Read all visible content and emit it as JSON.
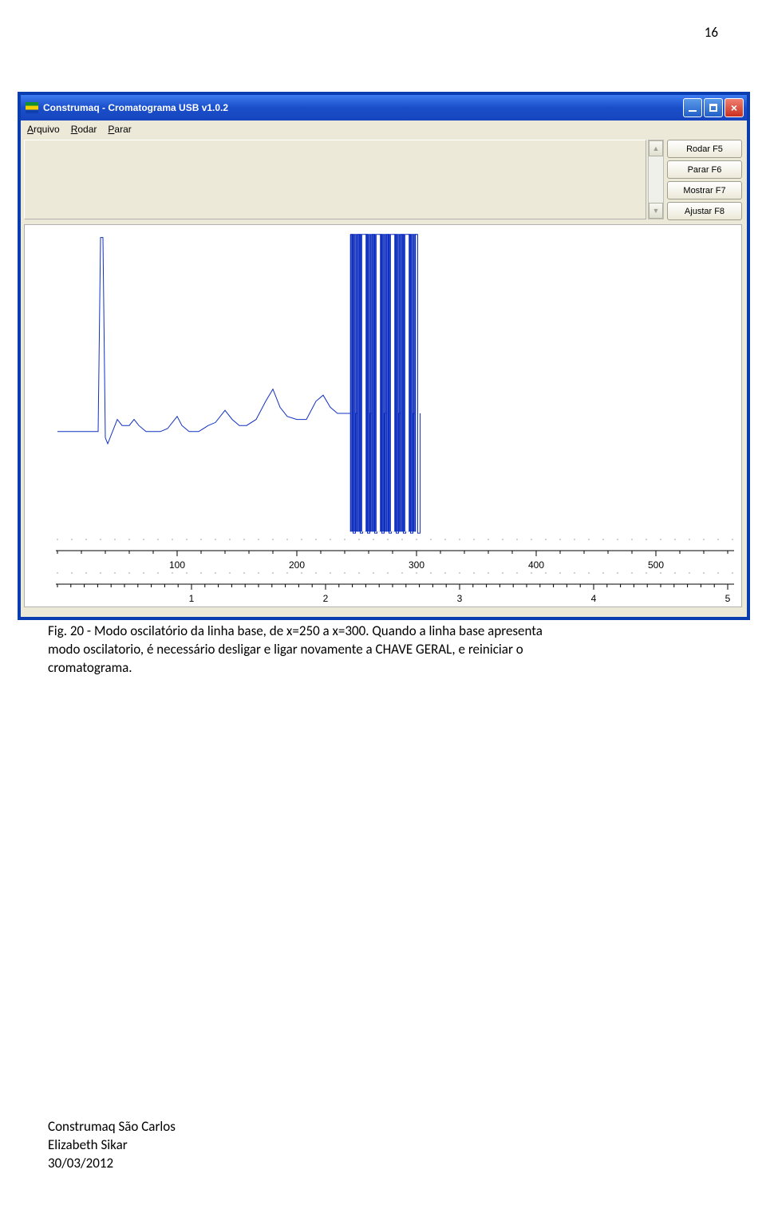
{
  "page_number": "16",
  "window": {
    "title": "Construmaq - Cromatograma USB v1.0.2",
    "titlebar_gradient": [
      "#3c7bf0",
      "#1645be"
    ],
    "frame_color": "#0a3db0",
    "menubar_bg": "#ece9d8",
    "workarea_bg": "#ece9d8"
  },
  "menu": {
    "items": [
      "Arquivo",
      "Rodar",
      "Parar"
    ]
  },
  "side_buttons": {
    "items": [
      "Rodar F5",
      "Parar F6",
      "Mostrar F7",
      "Ajustar F8"
    ]
  },
  "chart": {
    "type": "line",
    "background_color": "#ffffff",
    "line_color": "#1030c0",
    "line_width": 1,
    "axis_color": "#000000",
    "axis_fontsize": 12,
    "dotted_grid_color": "#606060",
    "x_top": {
      "ticks": [
        100,
        200,
        300,
        400,
        500
      ],
      "range": [
        0,
        560
      ]
    },
    "x_bottom": {
      "ticks": [
        1,
        2,
        3,
        4,
        5
      ],
      "range": [
        0,
        5
      ]
    },
    "y_range": [
      0,
      100
    ],
    "osc_x_range": [
      245,
      300
    ],
    "data": [
      [
        0,
        34
      ],
      [
        30,
        34
      ],
      [
        34,
        34
      ],
      [
        36,
        98
      ],
      [
        38,
        98
      ],
      [
        40,
        32
      ],
      [
        42,
        30
      ],
      [
        50,
        38
      ],
      [
        54,
        36
      ],
      [
        60,
        36
      ],
      [
        64,
        38
      ],
      [
        68,
        36
      ],
      [
        74,
        34
      ],
      [
        80,
        34
      ],
      [
        86,
        34
      ],
      [
        92,
        35
      ],
      [
        100,
        39
      ],
      [
        104,
        36
      ],
      [
        110,
        34
      ],
      [
        118,
        34
      ],
      [
        126,
        36
      ],
      [
        132,
        37
      ],
      [
        140,
        41
      ],
      [
        146,
        38
      ],
      [
        152,
        36
      ],
      [
        158,
        36
      ],
      [
        166,
        38
      ],
      [
        174,
        44
      ],
      [
        180,
        48
      ],
      [
        186,
        42
      ],
      [
        192,
        39
      ],
      [
        200,
        38
      ],
      [
        208,
        38
      ],
      [
        216,
        44
      ],
      [
        222,
        46
      ],
      [
        228,
        42
      ],
      [
        234,
        40
      ],
      [
        240,
        40
      ],
      [
        244,
        40
      ]
    ]
  },
  "caption": {
    "line1_a": "Fig. 20 - Modo oscilatório da linha base, de x=250 a x=300. Quando a linha base apresenta",
    "line2": "modo oscilatorio, é necessário desligar e ligar novamente a CHAVE GERAL, e reiniciar o",
    "line3": "cromatograma."
  },
  "footer": {
    "line1": "Construmaq São Carlos",
    "line2": "Elizabeth Sikar",
    "line3": "30/03/2012"
  }
}
